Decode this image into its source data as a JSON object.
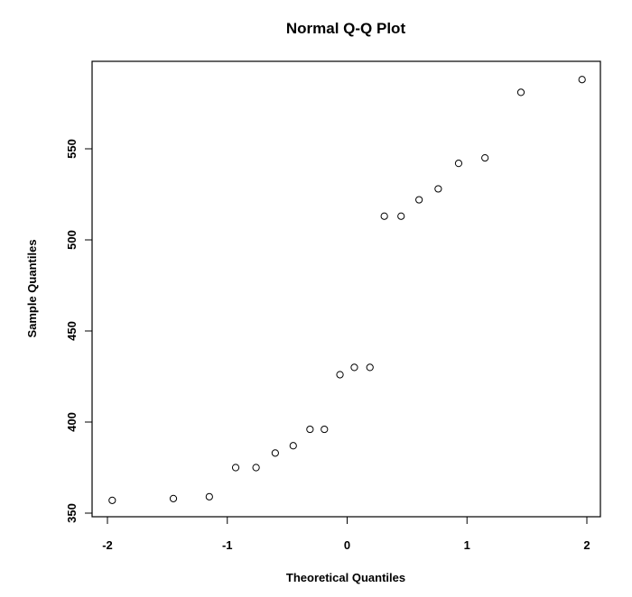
{
  "chart_data": {
    "type": "scatter",
    "title": "Normal Q-Q Plot",
    "xlabel": "Theoretical Quantiles",
    "ylabel": "Sample Quantiles",
    "xlim": [
      -2.05,
      2.05
    ],
    "ylim": [
      350,
      595
    ],
    "xticks": [
      -2,
      -1,
      0,
      1,
      2
    ],
    "xtick_labels": [
      "-2",
      "-1",
      "0",
      "1",
      "2"
    ],
    "yticks": [
      350,
      400,
      450,
      500,
      550
    ],
    "ytick_labels": [
      "350",
      "400",
      "450",
      "500",
      "550"
    ],
    "grid": false,
    "marker": "open-circle",
    "color": "#000000",
    "series": [
      {
        "x": [
          -1.96,
          -1.45,
          -1.15,
          -0.93,
          -0.76,
          -0.6,
          -0.45,
          -0.31,
          -0.19,
          -0.06,
          0.06,
          0.19,
          0.31,
          0.45,
          0.6,
          0.76,
          0.93,
          1.15,
          1.45,
          1.96
        ],
        "y": [
          357,
          358,
          359,
          375,
          375,
          383,
          387,
          396,
          396,
          426,
          430,
          430,
          513,
          513,
          522,
          528,
          542,
          545,
          581,
          588
        ]
      }
    ]
  }
}
